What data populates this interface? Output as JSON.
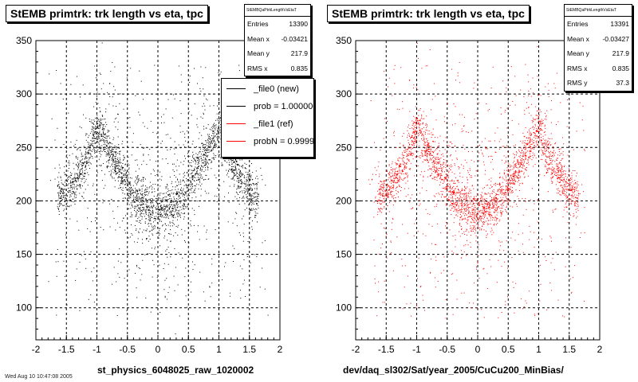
{
  "charts": [
    {
      "title": "StEMB primtrk: trk length vs eta, tpc",
      "xlabel": "st_physics_6048025_raw_1020002",
      "stats": {
        "name": "StEMBQaPtrkLengthVsEtaT",
        "rows": [
          {
            "k": "Entries",
            "v": "13390"
          },
          {
            "k": "Mean x",
            "v": "-0.03421"
          },
          {
            "k": "Mean y",
            "v": "217.9"
          },
          {
            "k": "RMS x",
            "v": "0.835"
          }
        ]
      },
      "legend": [
        {
          "label": "_file0 (new)",
          "color": "#000000"
        },
        {
          "label": "prob = 1.000000",
          "color": "#000000"
        },
        {
          "label": "_file1 (ref)",
          "color": "#ff0000"
        },
        {
          "label": "probN = 0.999999",
          "color": "#ff0000"
        }
      ],
      "footnote": "Wed Aug 10 10:47:08 2005"
    },
    {
      "title": "StEMB primtrk: trk length vs eta, tpc",
      "xlabel": "dev/daq_sl302/Sat/year_2005/CuCu200_MinBias/",
      "stats": {
        "name": "StEMBQaPtrkLengthVsEtaT",
        "rows": [
          {
            "k": "Entries",
            "v": "13391"
          },
          {
            "k": "Mean x",
            "v": "-0.03427"
          },
          {
            "k": "Mean y",
            "v": "217.9"
          },
          {
            "k": "RMS x",
            "v": "0.835"
          },
          {
            "k": "RMS y",
            "v": "37.3"
          }
        ]
      }
    }
  ],
  "chart_data": [
    {
      "type": "scatter",
      "title": "StEMB primtrk: trk length vs eta, tpc",
      "xlabel": "st_physics_6048025_raw_1020002",
      "ylabel": "",
      "xlim": [
        -2,
        2
      ],
      "ylim": [
        70,
        350
      ],
      "xticks": [
        -2,
        -1.5,
        -1,
        -0.5,
        0,
        0.5,
        1,
        1.5,
        2
      ],
      "yticks": [
        100,
        150,
        200,
        250,
        300,
        350
      ],
      "grid": true,
      "marker_color": "#000000",
      "series": [
        {
          "name": "_file0 (new)",
          "entries": 13390,
          "mean_x": -0.03421,
          "mean_y": 217.9,
          "rms_x": 0.835,
          "band_x": [
            -1.6,
            -1.5,
            -1.2,
            -1.0,
            -0.8,
            -0.6,
            -0.4,
            -0.2,
            0,
            0.2,
            0.4,
            0.6,
            0.8,
            1.0,
            1.2,
            1.5,
            1.6
          ],
          "band_y": [
            205,
            210,
            235,
            270,
            245,
            225,
            205,
            195,
            190,
            195,
            205,
            225,
            245,
            270,
            235,
            210,
            205
          ]
        }
      ]
    },
    {
      "type": "scatter",
      "title": "StEMB primtrk: trk length vs eta, tpc",
      "xlabel": "dev/daq_sl302/Sat/year_2005/CuCu200_MinBias/",
      "ylabel": "",
      "xlim": [
        -2,
        2
      ],
      "ylim": [
        70,
        350
      ],
      "xticks": [
        -2,
        -1.5,
        -1,
        -0.5,
        0,
        0.5,
        1,
        1.5,
        2
      ],
      "yticks": [
        100,
        150,
        200,
        250,
        300,
        350
      ],
      "grid": true,
      "marker_color": "#ff0000",
      "series": [
        {
          "name": "_file1 (ref)",
          "entries": 13391,
          "mean_x": -0.03427,
          "mean_y": 217.9,
          "rms_x": 0.835,
          "rms_y": 37.3,
          "band_x": [
            -1.6,
            -1.5,
            -1.2,
            -1.0,
            -0.8,
            -0.6,
            -0.4,
            -0.2,
            0,
            0.2,
            0.4,
            0.6,
            0.8,
            1.0,
            1.2,
            1.5,
            1.6
          ],
          "band_y": [
            205,
            210,
            235,
            270,
            245,
            225,
            205,
            195,
            190,
            195,
            205,
            225,
            245,
            270,
            235,
            210,
            205
          ]
        }
      ]
    }
  ]
}
